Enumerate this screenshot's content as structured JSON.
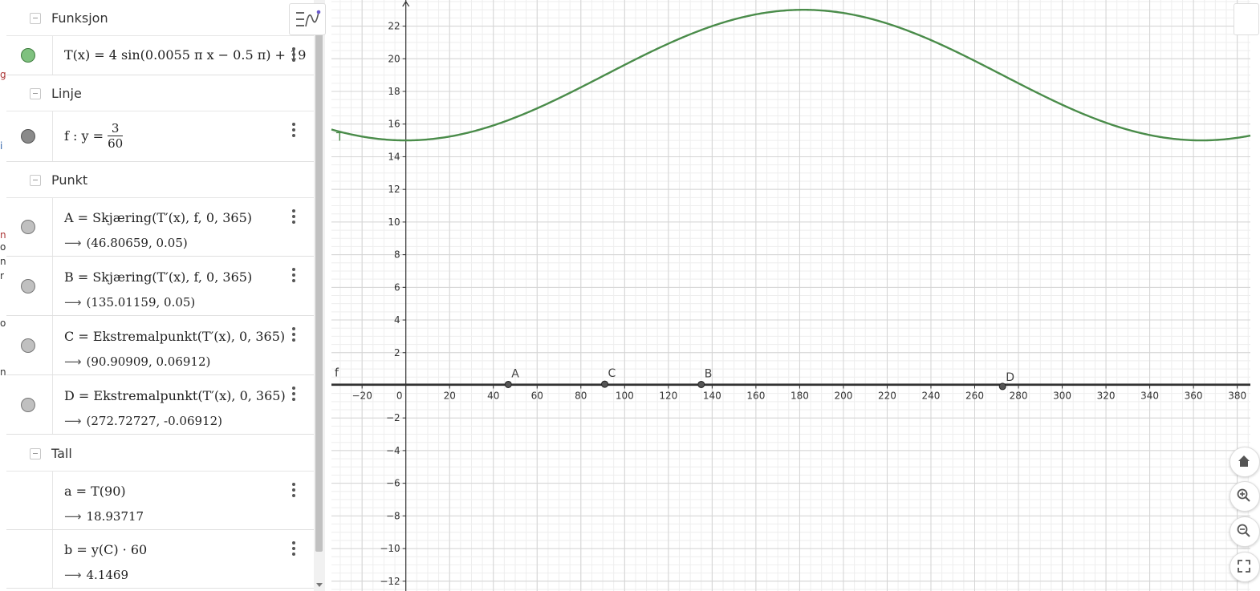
{
  "left_edge_fragments": [
    "g",
    "i",
    "n",
    "o",
    "n",
    "r",
    "ol",
    "n"
  ],
  "algebra": {
    "groups": [
      {
        "label": "Funksjon"
      },
      {
        "label": "Linje"
      },
      {
        "label": "Punkt"
      },
      {
        "label": "Tall"
      }
    ],
    "function_row": {
      "formula": "T(x) = 4 sin(0.0055 π x − 0.5 π) + 19",
      "color": "#7fc17f"
    },
    "line_row": {
      "prefix": "f : y =",
      "numerator": "3",
      "denominator": "60",
      "color": "#8a8a8a"
    },
    "points": [
      {
        "formula": "A = Skjæring(T′(x), f, 0, 365)",
        "output": "(46.80659, 0.05)"
      },
      {
        "formula": "B = Skjæring(T′(x), f, 0, 365)",
        "output": "(135.01159, 0.05)"
      },
      {
        "formula": "C = Ekstremalpunkt(T′(x), 0, 365)",
        "output": "(90.90909, 0.06912)"
      },
      {
        "formula": "D = Ekstremalpunkt(T′(x), 0, 365)",
        "output": "(272.72727, -0.06912)"
      }
    ],
    "numbers": [
      {
        "formula": "a = T(90)",
        "output": "18.93717"
      },
      {
        "formula": "b = y(C) · 60",
        "output": "4.1469"
      }
    ],
    "arrow_glyph": "⟶"
  },
  "chart_data": {
    "type": "line",
    "xlim": [
      -34,
      386
    ],
    "ylim": [
      -12.6,
      23.6
    ],
    "x_ticks": [
      -20,
      0,
      20,
      40,
      60,
      80,
      100,
      120,
      140,
      160,
      180,
      200,
      220,
      240,
      260,
      280,
      300,
      320,
      340,
      360,
      380
    ],
    "y_ticks": [
      -12,
      -10,
      -8,
      -6,
      -4,
      -2,
      2,
      4,
      6,
      8,
      10,
      12,
      14,
      16,
      18,
      20,
      22
    ],
    "grid": true,
    "curve": {
      "name": "T",
      "amplitude": 4,
      "frequency": 0.0055,
      "phase": -0.5,
      "offset": 19,
      "color": "#4a8c4a"
    },
    "line": {
      "name": "f",
      "y": 0.05,
      "color": "#333333"
    },
    "points": [
      {
        "name": "A",
        "x": 46.80659,
        "y": 0.05
      },
      {
        "name": "C",
        "x": 90.90909,
        "y": 0.06912
      },
      {
        "name": "B",
        "x": 135.01159,
        "y": 0.05
      },
      {
        "name": "D",
        "x": 272.72727,
        "y": -0.06912
      }
    ]
  }
}
